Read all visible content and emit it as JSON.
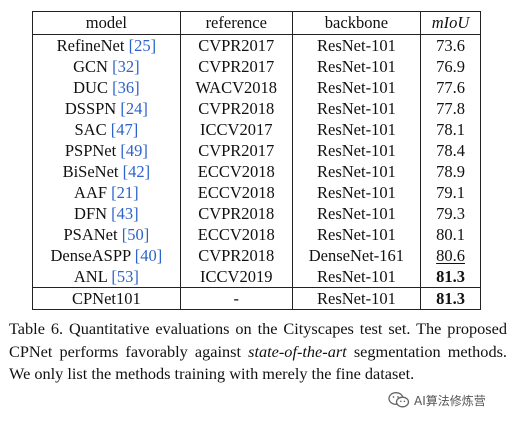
{
  "table": {
    "headers": [
      "model",
      "reference",
      "backbone",
      "mIoU"
    ],
    "rows": [
      {
        "model": "RefineNet",
        "ref": "[25]",
        "reference": "CVPR2017",
        "backbone": "ResNet-101",
        "miou": "73.6",
        "style": ""
      },
      {
        "model": "GCN",
        "ref": "[32]",
        "reference": "CVPR2017",
        "backbone": "ResNet-101",
        "miou": "76.9",
        "style": ""
      },
      {
        "model": "DUC",
        "ref": "[36]",
        "reference": "WACV2018",
        "backbone": "ResNet-101",
        "miou": "77.6",
        "style": ""
      },
      {
        "model": "DSSPN",
        "ref": "[24]",
        "reference": "CVPR2018",
        "backbone": "ResNet-101",
        "miou": "77.8",
        "style": ""
      },
      {
        "model": "SAC",
        "ref": "[47]",
        "reference": "ICCV2017",
        "backbone": "ResNet-101",
        "miou": "78.1",
        "style": ""
      },
      {
        "model": "PSPNet",
        "ref": "[49]",
        "reference": "CVPR2017",
        "backbone": "ResNet-101",
        "miou": "78.4",
        "style": ""
      },
      {
        "model": "BiSeNet",
        "ref": "[42]",
        "reference": "ECCV2018",
        "backbone": "ResNet-101",
        "miou": "78.9",
        "style": ""
      },
      {
        "model": "AAF",
        "ref": "[21]",
        "reference": "ECCV2018",
        "backbone": "ResNet-101",
        "miou": "79.1",
        "style": ""
      },
      {
        "model": "DFN",
        "ref": "[43]",
        "reference": "CVPR2018",
        "backbone": "ResNet-101",
        "miou": "79.3",
        "style": ""
      },
      {
        "model": "PSANet",
        "ref": "[50]",
        "reference": "ECCV2018",
        "backbone": "ResNet-101",
        "miou": "80.1",
        "style": ""
      },
      {
        "model": "DenseASPP",
        "ref": "[40]",
        "reference": "CVPR2018",
        "backbone": "DenseNet-161",
        "miou": "80.6",
        "style": "underline"
      },
      {
        "model": "ANL",
        "ref": "[53]",
        "reference": "ICCV2019",
        "backbone": "ResNet-101",
        "miou": "81.3",
        "style": "bold"
      }
    ],
    "final_row": {
      "model": "CPNet101",
      "reference": "-",
      "backbone": "ResNet-101",
      "miou": "81.3",
      "style": "bold"
    },
    "ref_color": "#2b63c9"
  },
  "caption": {
    "part1": "Table 6.  Quantitative evaluations on the Cityscapes test set. The proposed CPNet performs favorably against ",
    "italic": "state-of-the-art",
    "part2": " segmentation methods. We only list the methods training with merely the fine dataset."
  },
  "watermark": {
    "text": "AI算法修炼营",
    "icon": "wechat-icon"
  }
}
